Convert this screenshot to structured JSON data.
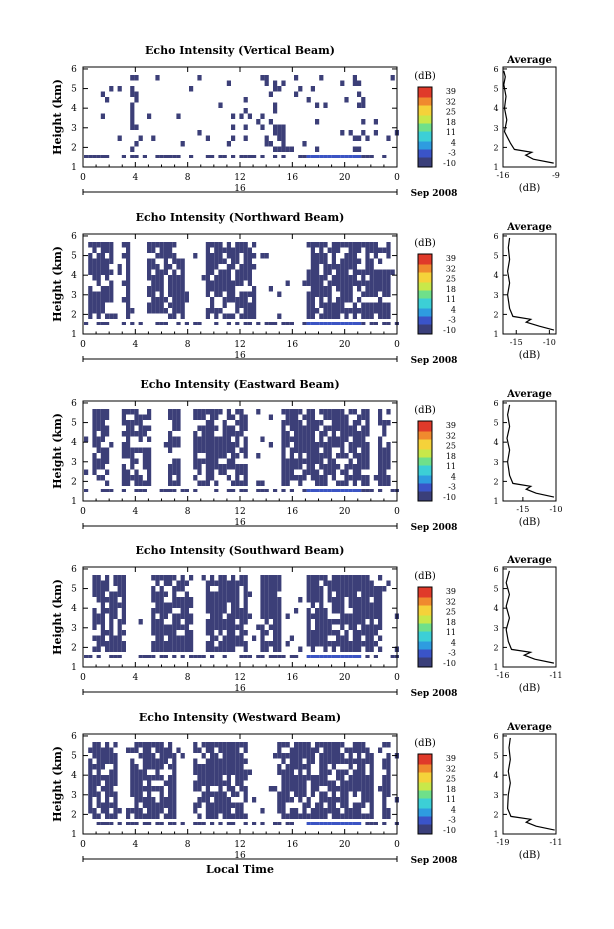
{
  "height_label": "Height (km)",
  "dB_label": "(dB)",
  "average_title": "Average",
  "date_label": "Sep 2008",
  "day_label": "16",
  "xlabel_bottom": "Local Time",
  "colorbar_ticks": [
    "39",
    "32",
    "25",
    "18",
    "11",
    "4",
    "-3",
    "-10"
  ],
  "chart_data": [
    {
      "type": "heatmap",
      "title": "Echo Intensity (Vertical Beam)",
      "xlabel": "",
      "ylabel": "Height (km)",
      "x_ticks": [
        "0",
        "4",
        "8",
        "12",
        "16",
        "20",
        "0"
      ],
      "y_ticks": [
        "1",
        "2",
        "3",
        "4",
        "5",
        "6"
      ],
      "xlim": [
        0,
        24
      ],
      "ylim": [
        1,
        6.1
      ],
      "average": {
        "xlim": [
          -16,
          -9
        ],
        "x_ticks": [
          "-16",
          "-9"
        ],
        "y_ticks": [
          "1",
          "2",
          "3",
          "4",
          "5",
          "6"
        ],
        "xlabel": "(dB)",
        "profile": [
          [
            -9.3,
            1.2
          ],
          [
            -12,
            1.4
          ],
          [
            -13,
            1.6
          ],
          [
            -12.2,
            1.75
          ],
          [
            -14.5,
            1.9
          ],
          [
            -15,
            2.2
          ],
          [
            -15.8,
            2.8
          ],
          [
            -15.5,
            3.4
          ],
          [
            -15.8,
            4.0
          ],
          [
            -15.6,
            4.6
          ],
          [
            -15.9,
            5.2
          ],
          [
            -15.7,
            5.6
          ],
          [
            -15.9,
            5.9
          ]
        ]
      }
    },
    {
      "type": "heatmap",
      "title": "Echo Intensity (Northward Beam)",
      "xlabel": "",
      "ylabel": "Height (km)",
      "x_ticks": [
        "0",
        "4",
        "8",
        "12",
        "16",
        "20",
        "0"
      ],
      "y_ticks": [
        "1",
        "2",
        "3",
        "4",
        "5",
        "6"
      ],
      "xlim": [
        0,
        24
      ],
      "ylim": [
        1,
        6.1
      ],
      "average": {
        "xlim": [
          -17,
          -9
        ],
        "x_ticks": [
          "-15",
          "-10"
        ],
        "y_ticks": [
          "1",
          "2",
          "3",
          "4",
          "5",
          "6"
        ],
        "xlabel": "(dB)",
        "profile": [
          [
            -9.3,
            1.2
          ],
          [
            -11.5,
            1.4
          ],
          [
            -13.5,
            1.6
          ],
          [
            -12.8,
            1.75
          ],
          [
            -15.5,
            1.9
          ],
          [
            -16,
            2.3
          ],
          [
            -16.3,
            3.0
          ],
          [
            -16,
            3.6
          ],
          [
            -16.3,
            4.2
          ],
          [
            -16,
            4.8
          ],
          [
            -16.2,
            5.4
          ],
          [
            -16,
            5.9
          ]
        ]
      }
    },
    {
      "type": "heatmap",
      "title": "Echo Intensity (Eastward Beam)",
      "xlabel": "",
      "ylabel": "Height (km)",
      "x_ticks": [
        "0",
        "4",
        "8",
        "12",
        "16",
        "20",
        "0"
      ],
      "y_ticks": [
        "1",
        "2",
        "3",
        "4",
        "5",
        "6"
      ],
      "xlim": [
        0,
        24
      ],
      "ylim": [
        1,
        6.1
      ],
      "average": {
        "xlim": [
          -18,
          -10
        ],
        "x_ticks": [
          "-15",
          "-10"
        ],
        "y_ticks": [
          "1",
          "2",
          "3",
          "4",
          "5",
          "6"
        ],
        "xlabel": "(dB)",
        "profile": [
          [
            -10.3,
            1.2
          ],
          [
            -13,
            1.4
          ],
          [
            -14.5,
            1.6
          ],
          [
            -13.8,
            1.75
          ],
          [
            -16.5,
            1.9
          ],
          [
            -17,
            2.3
          ],
          [
            -17.3,
            3.0
          ],
          [
            -17,
            3.6
          ],
          [
            -17.4,
            4.2
          ],
          [
            -17,
            4.8
          ],
          [
            -17.3,
            5.4
          ],
          [
            -17,
            5.9
          ]
        ]
      }
    },
    {
      "type": "heatmap",
      "title": "Echo Intensity (Southward Beam)",
      "xlabel": "",
      "ylabel": "Height (km)",
      "x_ticks": [
        "0",
        "4",
        "8",
        "12",
        "16",
        "20",
        "0"
      ],
      "y_ticks": [
        "1",
        "2",
        "3",
        "4",
        "5",
        "6"
      ],
      "xlim": [
        0,
        24
      ],
      "ylim": [
        1,
        6.1
      ],
      "average": {
        "xlim": [
          -16,
          -11
        ],
        "x_ticks": [
          "-16",
          "-11"
        ],
        "y_ticks": [
          "1",
          "2",
          "3",
          "4",
          "5",
          "6"
        ],
        "xlabel": "(dB)",
        "profile": [
          [
            -11.2,
            1.2
          ],
          [
            -13,
            1.4
          ],
          [
            -14,
            1.6
          ],
          [
            -13.4,
            1.75
          ],
          [
            -15.2,
            1.9
          ],
          [
            -15.5,
            2.3
          ],
          [
            -15.7,
            2.9
          ],
          [
            -15.4,
            3.5
          ],
          [
            -15.7,
            4.1
          ],
          [
            -15.4,
            4.7
          ],
          [
            -15.7,
            5.3
          ],
          [
            -15.4,
            5.9
          ]
        ]
      }
    },
    {
      "type": "heatmap",
      "title": "Echo Intensity (Westward Beam)",
      "xlabel": "Local Time",
      "ylabel": "Height (km)",
      "x_ticks": [
        "0",
        "4",
        "8",
        "12",
        "16",
        "20",
        "0"
      ],
      "y_ticks": [
        "1",
        "2",
        "3",
        "4",
        "5",
        "6"
      ],
      "xlim": [
        0,
        24
      ],
      "ylim": [
        1,
        6.1
      ],
      "average": {
        "xlim": [
          -19,
          -11
        ],
        "x_ticks": [
          "-19",
          "-11"
        ],
        "y_ticks": [
          "1",
          "2",
          "3",
          "4",
          "5",
          "6"
        ],
        "xlabel": "(dB)",
        "profile": [
          [
            -11.2,
            1.2
          ],
          [
            -14,
            1.4
          ],
          [
            -15.5,
            1.6
          ],
          [
            -14.8,
            1.75
          ],
          [
            -17.8,
            1.9
          ],
          [
            -18.3,
            2.3
          ],
          [
            -18.2,
            3.0
          ],
          [
            -17.9,
            3.6
          ],
          [
            -18.2,
            4.2
          ],
          [
            -17.9,
            4.8
          ],
          [
            -18.1,
            5.4
          ],
          [
            -17.9,
            5.9
          ]
        ]
      }
    }
  ]
}
